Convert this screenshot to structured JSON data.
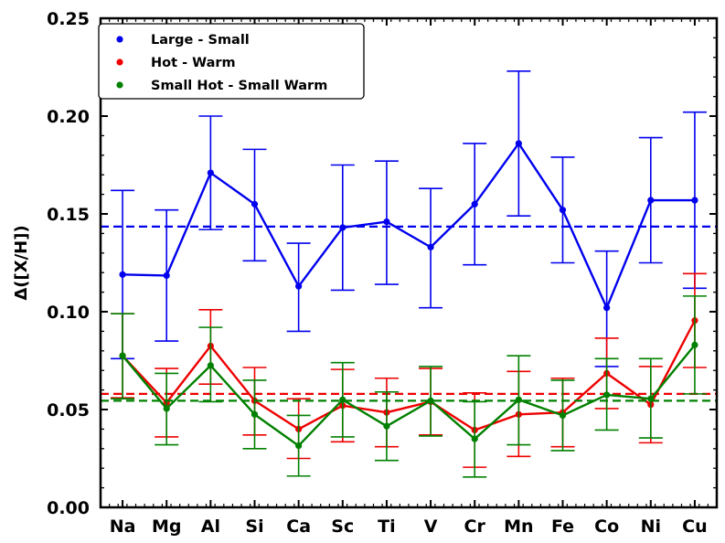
{
  "chart_data": {
    "type": "line",
    "title": "",
    "xlabel": "",
    "ylabel": "Δ([X/H])",
    "ylim": [
      0.0,
      0.25
    ],
    "yticks": [
      "0.00",
      "0.05",
      "0.10",
      "0.15",
      "0.20",
      "0.25"
    ],
    "categories": [
      "Na",
      "Mg",
      "Al",
      "Si",
      "Ca",
      "Sc",
      "Ti",
      "V",
      "Cr",
      "Mn",
      "Fe",
      "Co",
      "Ni",
      "Cu"
    ],
    "grid": false,
    "legend_position": "top-left",
    "series": [
      {
        "name": "Large - Small",
        "color": "#0000ee",
        "values": [
          0.119,
          0.1185,
          0.171,
          0.155,
          0.113,
          0.143,
          0.146,
          0.133,
          0.155,
          0.186,
          0.152,
          0.102,
          0.157,
          0.157
        ],
        "err_upper": [
          0.162,
          0.152,
          0.2,
          0.183,
          0.135,
          0.175,
          0.177,
          0.163,
          0.186,
          0.223,
          0.179,
          0.131,
          0.189,
          0.202
        ],
        "err_lower": [
          0.076,
          0.085,
          0.142,
          0.126,
          0.09,
          0.111,
          0.114,
          0.102,
          0.124,
          0.149,
          0.125,
          0.072,
          0.125,
          0.112
        ],
        "mean_line": 0.1435
      },
      {
        "name": "Hot - Warm",
        "color": "#ee0000",
        "values": [
          0.0775,
          0.0535,
          0.0825,
          0.0545,
          0.04,
          0.052,
          0.0485,
          0.054,
          0.0395,
          0.0475,
          0.0485,
          0.0685,
          0.0525,
          0.0955
        ],
        "err_upper": [
          0.099,
          0.071,
          0.101,
          0.0715,
          0.0555,
          0.0705,
          0.066,
          0.071,
          0.0585,
          0.0695,
          0.066,
          0.0865,
          0.072,
          0.1195
        ],
        "err_lower": [
          0.056,
          0.036,
          0.063,
          0.037,
          0.025,
          0.0335,
          0.031,
          0.037,
          0.0205,
          0.026,
          0.031,
          0.0505,
          0.033,
          0.0715
        ],
        "mean_line": 0.058
      },
      {
        "name": "Small Hot - Small Warm",
        "color": "#008000",
        "values": [
          0.0775,
          0.0505,
          0.0725,
          0.0475,
          0.0315,
          0.055,
          0.0415,
          0.0545,
          0.035,
          0.055,
          0.047,
          0.0575,
          0.0555,
          0.083
        ],
        "err_upper": [
          0.099,
          0.0685,
          0.092,
          0.065,
          0.047,
          0.074,
          0.059,
          0.072,
          0.054,
          0.0775,
          0.065,
          0.076,
          0.076,
          0.108
        ],
        "err_lower": [
          0.0555,
          0.032,
          0.054,
          0.03,
          0.016,
          0.036,
          0.024,
          0.0365,
          0.0155,
          0.032,
          0.029,
          0.0395,
          0.0355,
          0.058
        ],
        "mean_line": 0.0545
      }
    ]
  }
}
